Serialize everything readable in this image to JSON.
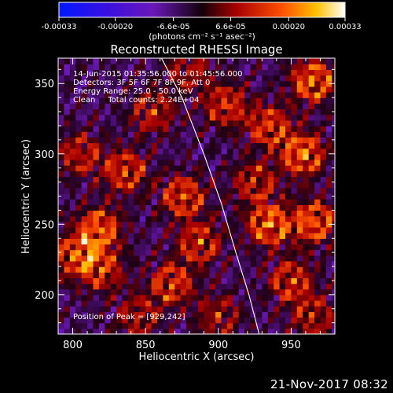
{
  "chart_data": {
    "type": "heatmap",
    "title": "Reconstructed RHESSI Image",
    "xlabel": "Heliocentric X (arcsec)",
    "ylabel": "Heliocentric Y (arcsec)",
    "xlim": [
      790,
      980
    ],
    "ylim": [
      172,
      368
    ],
    "x_ticks": [
      800,
      850,
      900,
      950
    ],
    "y_ticks": [
      200,
      250,
      300,
      350
    ],
    "colorbar": {
      "label": "(photons cm⁻² s⁻¹ asec⁻²)",
      "range": [
        -0.00033,
        0.00033
      ],
      "ticks": [
        "-0.00033",
        "-0.00020",
        "-6.6e-05",
        "6.6e-05",
        "0.00020",
        "0.00033"
      ]
    },
    "annotations": [
      "14-Jun-2015 01:35:56.000 to 01:45:56.000",
      "Detectors: 3F 5F 6F 7F 8F 9F, Att 0",
      "Energy Range: 25.0 - 50.0 keV",
      "Clean     Total counts: 2.24E+04"
    ],
    "peak_label": "Position of Peak = [929,242]",
    "peak": [
      929,
      242
    ],
    "limb_curve": [
      [
        861,
        368
      ],
      [
        875,
        340
      ],
      [
        890,
        300
      ],
      [
        902,
        265
      ],
      [
        912,
        230
      ],
      [
        921,
        200
      ],
      [
        928,
        172
      ]
    ],
    "sources": [
      {
        "x": 965,
        "y": 352,
        "amp": 1.0
      },
      {
        "x": 958,
        "y": 300,
        "amp": 1.0
      },
      {
        "x": 966,
        "y": 252,
        "amp": 0.95
      },
      {
        "x": 935,
        "y": 250,
        "amp": 1.0
      },
      {
        "x": 818,
        "y": 247,
        "amp": 0.95
      },
      {
        "x": 802,
        "y": 228,
        "amp": 0.8
      },
      {
        "x": 836,
        "y": 288,
        "amp": 0.8
      },
      {
        "x": 876,
        "y": 270,
        "amp": 0.85
      },
      {
        "x": 887,
        "y": 237,
        "amp": 0.75
      },
      {
        "x": 868,
        "y": 208,
        "amp": 0.8
      },
      {
        "x": 820,
        "y": 218,
        "amp": 0.7
      },
      {
        "x": 805,
        "y": 300,
        "amp": 0.65
      },
      {
        "x": 905,
        "y": 335,
        "amp": 0.75
      },
      {
        "x": 935,
        "y": 320,
        "amp": 0.8
      },
      {
        "x": 855,
        "y": 330,
        "amp": 0.65
      },
      {
        "x": 950,
        "y": 210,
        "amp": 0.75
      },
      {
        "x": 900,
        "y": 185,
        "amp": 0.55
      },
      {
        "x": 845,
        "y": 185,
        "amp": 0.55
      },
      {
        "x": 880,
        "y": 360,
        "amp": 0.55
      },
      {
        "x": 965,
        "y": 185,
        "amp": 0.6
      },
      {
        "x": 925,
        "y": 280,
        "amp": 0.65
      }
    ]
  },
  "footer_timestamp": "21-Nov-2017 08:32"
}
